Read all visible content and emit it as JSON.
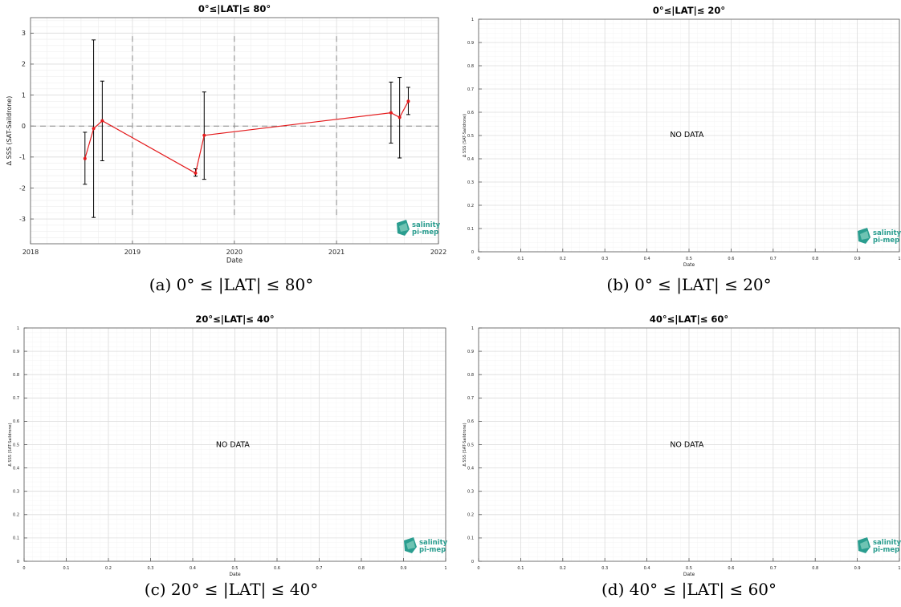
{
  "figures": [
    {
      "id": "a",
      "caption": "(a) 0° ≤ |LAT| ≤ 80°",
      "logo": {
        "line1": "salinity",
        "line2": "pi-mep"
      }
    },
    {
      "id": "b",
      "caption": "(b) 0° ≤ |LAT| ≤ 20°",
      "logo": {
        "line1": "salinity",
        "line2": "pi-mep"
      }
    },
    {
      "id": "c",
      "caption": "(c) 20° ≤ |LAT| ≤ 40°",
      "logo": {
        "line1": "salinity",
        "line2": "pi-mep"
      }
    },
    {
      "id": "d",
      "caption": "(d) 40° ≤ |LAT| ≤ 60°",
      "logo": {
        "line1": "salinity",
        "line2": "pi-mep"
      }
    }
  ],
  "chart_data": [
    {
      "type": "line",
      "title": "0°≤|LAT|≤ 80°",
      "xlabel": "Date",
      "ylabel": "Δ SSS (SAT-Saildrone)",
      "xlim": [
        "2018-01-01",
        "2022-01-01"
      ],
      "ylim": [
        -3.8,
        3.5
      ],
      "xticks": [
        "2018",
        "2019",
        "2020",
        "2021",
        "2022"
      ],
      "yticks": [
        -3,
        -2,
        -1,
        0,
        1,
        2,
        3
      ],
      "grid": true,
      "color": "#e41a1c",
      "errorbar_color": "#000000",
      "reference_line_y": 0,
      "year_separators": [
        "2019-01-01",
        "2020-01-01",
        "2021-01-01"
      ],
      "series": [
        {
          "x": [
            "2018-07-15",
            "2018-08-15",
            "2018-09-15",
            "2019-08-15",
            "2019-09-15",
            "2021-07-15",
            "2021-08-15",
            "2021-09-15"
          ],
          "y": [
            -1.05,
            -0.08,
            0.17,
            -1.52,
            -0.3,
            0.43,
            0.28,
            0.8
          ],
          "err_low": [
            -1.88,
            -2.95,
            -1.12,
            -1.62,
            -1.72,
            -0.55,
            -1.03,
            0.37
          ],
          "err_high": [
            -0.2,
            2.78,
            1.45,
            -1.38,
            1.1,
            1.42,
            1.57,
            1.25
          ]
        }
      ]
    },
    {
      "type": "line",
      "title": "0°≤|LAT|≤ 20°",
      "xlabel": "Date",
      "ylabel": "Δ SSS (SAT-Saildrone)",
      "xlim": [
        0,
        1
      ],
      "ylim": [
        0,
        1
      ],
      "xticks": [
        "0",
        "0.1",
        "0.2",
        "0.3",
        "0.4",
        "0.5",
        "0.6",
        "0.7",
        "0.8",
        "0.9",
        "1"
      ],
      "yticks": [
        "0",
        "0.1",
        "0.2",
        "0.3",
        "0.4",
        "0.5",
        "0.6",
        "0.7",
        "0.8",
        "0.9",
        "1"
      ],
      "grid": true,
      "annotation": "NO DATA",
      "series": []
    },
    {
      "type": "line",
      "title": "20°≤|LAT|≤ 40°",
      "xlabel": "Date",
      "ylabel": "Δ SSS (SAT-Saildrone)",
      "xlim": [
        0,
        1
      ],
      "ylim": [
        0,
        1
      ],
      "xticks": [
        "0",
        "0.1",
        "0.2",
        "0.3",
        "0.4",
        "0.5",
        "0.6",
        "0.7",
        "0.8",
        "0.9",
        "1"
      ],
      "yticks": [
        "0",
        "0.1",
        "0.2",
        "0.3",
        "0.4",
        "0.5",
        "0.6",
        "0.7",
        "0.8",
        "0.9",
        "1"
      ],
      "grid": true,
      "annotation": "NO DATA",
      "series": []
    },
    {
      "type": "line",
      "title": "40°≤|LAT|≤ 60°",
      "xlabel": "Date",
      "ylabel": "Δ SSS (SAT-Saildrone)",
      "xlim": [
        0,
        1
      ],
      "ylim": [
        0,
        1
      ],
      "xticks": [
        "0",
        "0.1",
        "0.2",
        "0.3",
        "0.4",
        "0.5",
        "0.6",
        "0.7",
        "0.8",
        "0.9",
        "1"
      ],
      "yticks": [
        "0",
        "0.1",
        "0.2",
        "0.3",
        "0.4",
        "0.5",
        "0.6",
        "0.7",
        "0.8",
        "0.9",
        "1"
      ],
      "grid": true,
      "annotation": "NO DATA",
      "series": []
    }
  ]
}
